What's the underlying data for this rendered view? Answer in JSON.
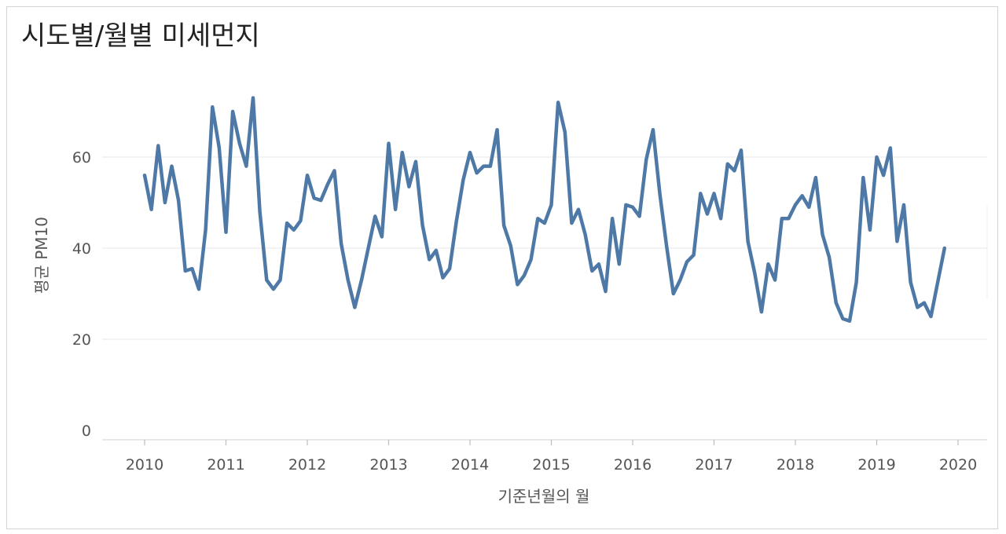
{
  "chart_data": {
    "type": "line",
    "title": "시도별/월별 미세먼지",
    "xlabel": "기준년월의 월",
    "ylabel": "평균 PM10",
    "x_ticks": [
      "2010",
      "2011",
      "2012",
      "2013",
      "2014",
      "2015",
      "2016",
      "2017",
      "2018",
      "2019",
      "2020"
    ],
    "y_ticks": [
      "0",
      "20",
      "40",
      "60"
    ],
    "ylim": [
      0,
      76
    ],
    "xlim": [
      "2009-07",
      "2020-05"
    ],
    "grid": true,
    "line_color": "#4e79a7",
    "series": [
      {
        "x": [
          "2010-01",
          "2010-02",
          "2010-03",
          "2010-04",
          "2010-05",
          "2010-06",
          "2010-07",
          "2010-08",
          "2010-09",
          "2010-10",
          "2010-11",
          "2010-12",
          "2011-01",
          "2011-02",
          "2011-03",
          "2011-04",
          "2011-05",
          "2011-06",
          "2011-07",
          "2011-08",
          "2011-09",
          "2011-10",
          "2011-11",
          "2011-12",
          "2012-01",
          "2012-02",
          "2012-03",
          "2012-04",
          "2012-05",
          "2012-06",
          "2012-07",
          "2012-08",
          "2012-09",
          "2012-10",
          "2012-11",
          "2012-12",
          "2013-01",
          "2013-02",
          "2013-03",
          "2013-04",
          "2013-05",
          "2013-06",
          "2013-07",
          "2013-08",
          "2013-09",
          "2013-10",
          "2013-11",
          "2013-12",
          "2014-01",
          "2014-02",
          "2014-03",
          "2014-04",
          "2014-05",
          "2014-06",
          "2014-07",
          "2014-08",
          "2014-09",
          "2014-10",
          "2014-11",
          "2014-12",
          "2015-01",
          "2015-02",
          "2015-03",
          "2015-04",
          "2015-05",
          "2015-06",
          "2015-07",
          "2015-08",
          "2015-09",
          "2015-10",
          "2015-11",
          "2015-12",
          "2016-01",
          "2016-02",
          "2016-03",
          "2016-04",
          "2016-05",
          "2016-06",
          "2016-07",
          "2016-08",
          "2016-09",
          "2016-10",
          "2016-11",
          "2016-12",
          "2017-01",
          "2017-02",
          "2017-03",
          "2017-04",
          "2017-05",
          "2017-06",
          "2017-07",
          "2017-08",
          "2017-09",
          "2017-10",
          "2017-11",
          "2017-12",
          "2018-01",
          "2018-02",
          "2018-03",
          "2018-04",
          "2018-05",
          "2018-06",
          "2018-07",
          "2018-08",
          "2018-09",
          "2018-10",
          "2018-11",
          "2018-12",
          "2019-01",
          "2019-02",
          "2019-03",
          "2019-04",
          "2019-05",
          "2019-06",
          "2019-07",
          "2019-08",
          "2019-09",
          "2019-10",
          "2019-11"
        ],
        "values": [
          56,
          48.5,
          62.5,
          50,
          58,
          50.5,
          35,
          35.5,
          31,
          44,
          71,
          62,
          43.5,
          70,
          63,
          58,
          73,
          48,
          33,
          31,
          33,
          45.5,
          44,
          46,
          56,
          51,
          50.5,
          54,
          57,
          41,
          33,
          27,
          33,
          40,
          47,
          42.5,
          63,
          48.5,
          61,
          53.5,
          59,
          45,
          37.5,
          39.5,
          33.5,
          35.5,
          46,
          55,
          61,
          56.5,
          58,
          58,
          66,
          45,
          40.5,
          32,
          34,
          37.5,
          46.5,
          45.5,
          49.5,
          72,
          65.5,
          45.5,
          48.5,
          43,
          35,
          36.5,
          30.5,
          46.5,
          36.5,
          49.5,
          49,
          47,
          59.5,
          66,
          52,
          40.5,
          30,
          33,
          37,
          38.5,
          52,
          47.5,
          52,
          46.5,
          58.5,
          57,
          61.5,
          41.5,
          34.5,
          26,
          36.5,
          33,
          46.5,
          46.5,
          49.5,
          51.5,
          49,
          55.5,
          43,
          38,
          28,
          24.5,
          24,
          32.5,
          55.5,
          44,
          60,
          56,
          62,
          41.5,
          49.5,
          32.5,
          27,
          28,
          25,
          32.5,
          40
        ]
      }
    ]
  }
}
